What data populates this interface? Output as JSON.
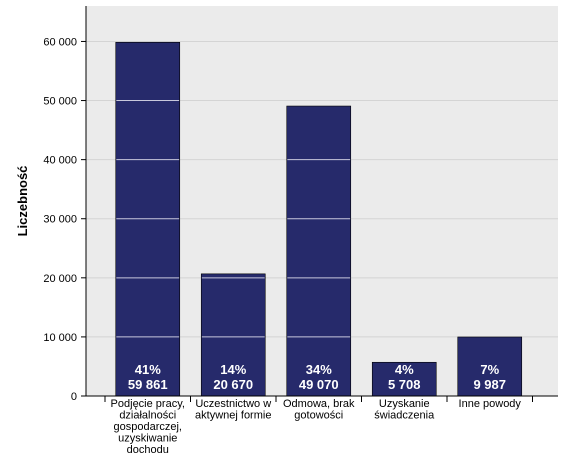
{
  "chart_data": {
    "type": "bar",
    "ylabel": "Liczebność",
    "xlabel": "",
    "title": "",
    "categories": [
      [
        "Podjęcie pracy,",
        "działalności",
        "gospodarczej,",
        "uzyskiwanie",
        "dochodu"
      ],
      [
        "Uczestnictwo w",
        "aktywnej formie"
      ],
      [
        "Odmowa, brak",
        "gotowości"
      ],
      [
        "Uzyskanie",
        "świadczenia"
      ],
      [
        "Inne powody"
      ]
    ],
    "values": [
      59861,
      20670,
      49070,
      5708,
      9987
    ],
    "percent_labels": [
      "41%",
      "14%",
      "34%",
      "4%",
      "7%"
    ],
    "count_labels": [
      "59 861",
      "20 670",
      "49 070",
      "5 708",
      "9 987"
    ],
    "ylim": [
      0,
      66000
    ],
    "yticks": [
      0,
      10000,
      20000,
      30000,
      40000,
      50000,
      60000
    ],
    "ytick_labels": [
      "0",
      "10 000",
      "20 000",
      "30 000",
      "40 000",
      "50 000",
      "60 000"
    ],
    "grid": true,
    "bar_color": "#262a6b",
    "plot_bg": "#ebebeb",
    "grid_color": "#d4d4d4"
  }
}
